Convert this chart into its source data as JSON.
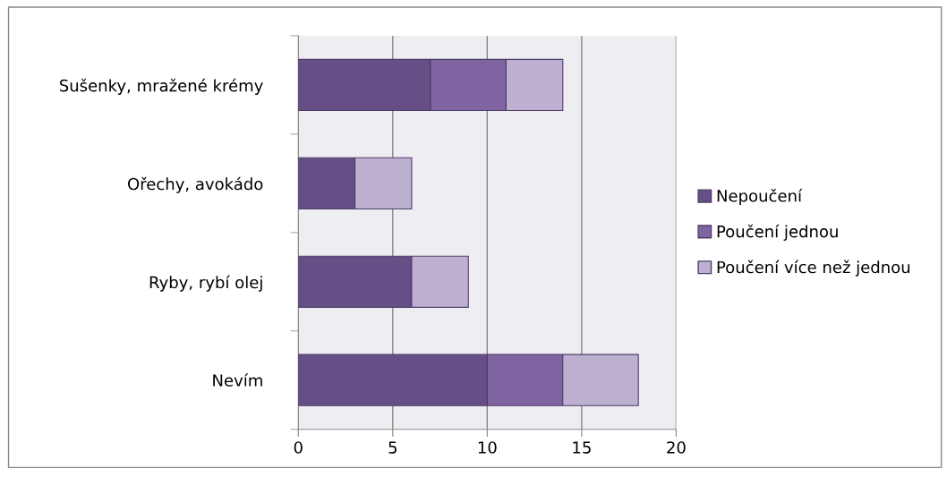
{
  "chart_data": {
    "type": "bar",
    "orientation": "horizontal",
    "stacked": true,
    "categories": [
      "Sušenky, mražené krémy",
      "Ořechy, avokádo",
      "Ryby, rybí olej",
      "Nevím"
    ],
    "series": [
      {
        "name": "Nepoučení",
        "color": "#664f86",
        "values": [
          7,
          3,
          6,
          10
        ]
      },
      {
        "name": "Poučení jednou",
        "color": "#8064a2",
        "values": [
          4,
          0,
          0,
          4
        ]
      },
      {
        "name": "Poučení více než jednou",
        "color": "#bdb0d1",
        "values": [
          3,
          3,
          3,
          4
        ]
      }
    ],
    "xlim": [
      0,
      20
    ],
    "xticks": [
      0,
      5,
      10,
      15,
      20
    ],
    "grid": "x",
    "legend": "right"
  }
}
